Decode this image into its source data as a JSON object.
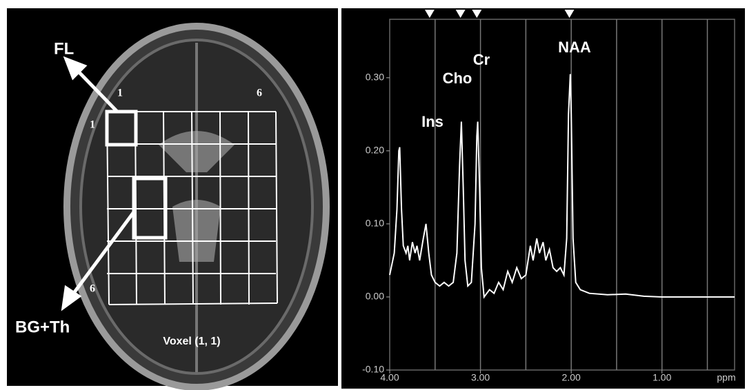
{
  "chart_data": {
    "type": "line",
    "x": [
      4.0,
      3.95,
      3.92,
      3.9,
      3.89,
      3.87,
      3.85,
      3.82,
      3.8,
      3.78,
      3.75,
      3.72,
      3.7,
      3.67,
      3.63,
      3.6,
      3.57,
      3.54,
      3.5,
      3.45,
      3.4,
      3.35,
      3.3,
      3.26,
      3.23,
      3.21,
      3.19,
      3.17,
      3.14,
      3.1,
      3.06,
      3.04,
      3.03,
      3.01,
      2.99,
      2.96,
      2.9,
      2.85,
      2.8,
      2.75,
      2.7,
      2.65,
      2.6,
      2.55,
      2.5,
      2.45,
      2.42,
      2.38,
      2.35,
      2.31,
      2.28,
      2.24,
      2.2,
      2.16,
      2.12,
      2.08,
      2.05,
      2.03,
      2.01,
      2.0,
      1.98,
      1.95,
      1.9,
      1.8,
      1.6,
      1.4,
      1.2,
      1.0,
      0.6,
      0.2
    ],
    "series": [
      {
        "color": "#ffffff",
        "values": [
          0.03,
          0.06,
          0.12,
          0.2,
          0.205,
          0.12,
          0.07,
          0.06,
          0.07,
          0.05,
          0.075,
          0.06,
          0.07,
          0.05,
          0.08,
          0.1,
          0.06,
          0.03,
          0.02,
          0.015,
          0.02,
          0.015,
          0.02,
          0.06,
          0.18,
          0.24,
          0.15,
          0.05,
          0.015,
          0.02,
          0.1,
          0.22,
          0.24,
          0.15,
          0.04,
          0.0,
          0.01,
          0.005,
          0.02,
          0.01,
          0.035,
          0.02,
          0.04,
          0.025,
          0.03,
          0.07,
          0.05,
          0.08,
          0.06,
          0.075,
          0.05,
          0.065,
          0.04,
          0.035,
          0.04,
          0.03,
          0.08,
          0.25,
          0.305,
          0.25,
          0.08,
          0.02,
          0.01,
          0.005,
          0.003,
          0.004,
          0.001,
          0.0,
          0.0,
          0.0
        ]
      }
    ],
    "xlim": [
      4.0,
      0.2
    ],
    "ylim": [
      -0.1,
      0.38
    ],
    "xticks": [
      {
        "value": 4,
        "label": "4.00"
      },
      {
        "value": 3,
        "label": "3.00"
      },
      {
        "value": 2,
        "label": "2.00"
      },
      {
        "value": 1,
        "label": "1.00"
      }
    ],
    "yticks": [
      {
        "value": -0.1,
        "label": "-0.10"
      },
      {
        "value": 0,
        "label": "0.00"
      },
      {
        "value": 0.1,
        "label": "0.10"
      },
      {
        "value": 0.2,
        "label": "0.20"
      },
      {
        "value": 0.3,
        "label": "0.30"
      }
    ],
    "x_label": "ppm",
    "x_gridlines": [
      3.5,
      3.0,
      2.5,
      2.0,
      1.5,
      1.0,
      0.5
    ],
    "peak_markers": [
      3.56,
      3.22,
      3.04,
      2.02
    ],
    "annotations": [
      "Ins",
      "Cho",
      "Cr",
      "NAA"
    ]
  },
  "image": {
    "arrow_labels": [
      "FL",
      "BG+Th"
    ],
    "grid_labels": [
      "1",
      "1",
      "6",
      "6"
    ],
    "caption": "Voxel (1, 1)"
  }
}
